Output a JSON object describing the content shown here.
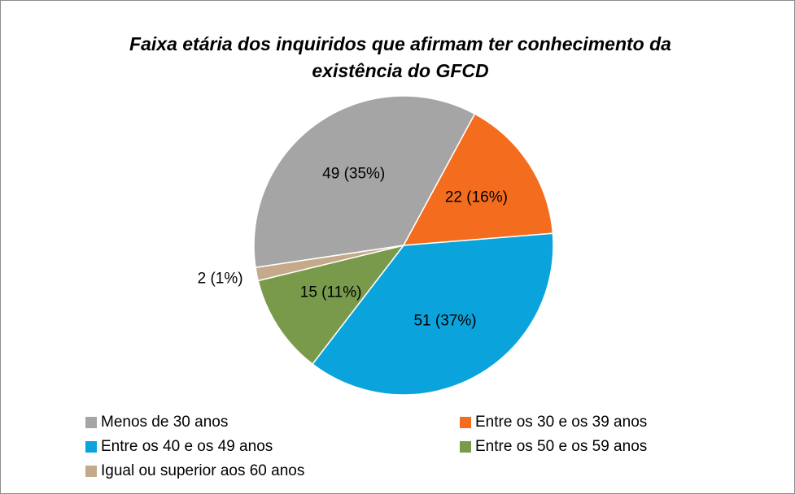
{
  "chart_data": {
    "type": "pie",
    "title": [
      "Faixa etária dos inquiridos que  afirmam ter conhecimento da",
      "existência do GFCD"
    ],
    "categories": [
      "Menos de 30 anos",
      "Entre os 30 e os 39 anos",
      "Entre os 40 e os 49 anos",
      "Entre os 50 e os 59 anos",
      "Igual ou superior aos 60 anos"
    ],
    "values": [
      49,
      22,
      51,
      15,
      2
    ],
    "value_labels": [
      "49 (35%)",
      "22 (16%)",
      "51 (37%)",
      "15 (11%)",
      "2 (1%)"
    ],
    "colors": [
      "#a5a5a5",
      "#f46d1e",
      "#0aa3db",
      "#799a4b",
      "#c4aa8b"
    ],
    "legend": "bottom"
  }
}
